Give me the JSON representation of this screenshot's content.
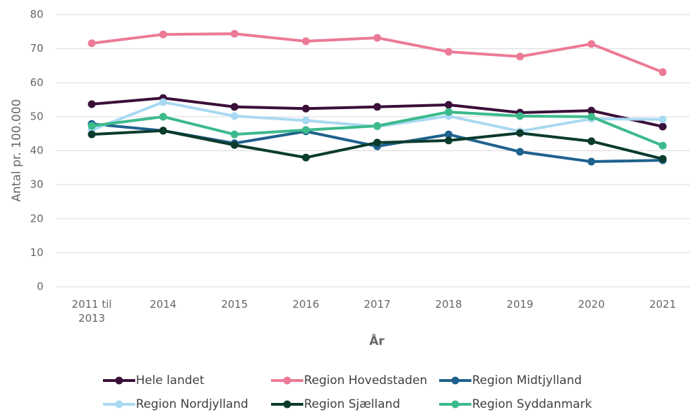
{
  "chart_data": {
    "type": "line",
    "x_label": "År",
    "y_label": "Antal pr. 100.000",
    "categories": [
      "2011 til 2013",
      "2014",
      "2015",
      "2016",
      "2017",
      "2018",
      "2019",
      "2020",
      "2021"
    ],
    "series": [
      {
        "name": "Hele landet",
        "color": "#3b0f3a",
        "values": [
          53.7,
          55.5,
          52.9,
          52.4,
          52.9,
          53.5,
          51.2,
          51.8,
          47.1
        ]
      },
      {
        "name": "Region Hovedstaden",
        "color": "#ec7a96",
        "values": [
          71.6,
          74.2,
          74.4,
          72.2,
          73.2,
          69.1,
          67.7,
          71.4,
          63.1
        ]
      },
      {
        "name": "Region Midtjylland",
        "color": "#1f628e",
        "values": [
          47.9,
          45.9,
          42.2,
          45.7,
          41.3,
          44.8,
          39.7,
          36.8,
          37.2
        ]
      },
      {
        "name": "Region Nordjylland",
        "color": "#a9d9f2",
        "values": [
          46.1,
          54.3,
          50.2,
          48.9,
          47.1,
          50.2,
          45.7,
          49.4,
          49.2
        ]
      },
      {
        "name": "Region Sjælland",
        "color": "#0b3b2c",
        "values": [
          44.8,
          45.9,
          41.7,
          38.0,
          42.4,
          43.0,
          45.2,
          42.8,
          37.6
        ]
      },
      {
        "name": "Region Syddanmark",
        "color": "#3cba8c",
        "values": [
          47.3,
          50.0,
          44.8,
          46.1,
          47.3,
          51.4,
          50.2,
          50.0,
          41.5
        ]
      }
    ],
    "ylim": [
      0,
      80
    ],
    "yticks": [
      0,
      10,
      20,
      30,
      40,
      50,
      60,
      70,
      80
    ],
    "grid": true
  }
}
